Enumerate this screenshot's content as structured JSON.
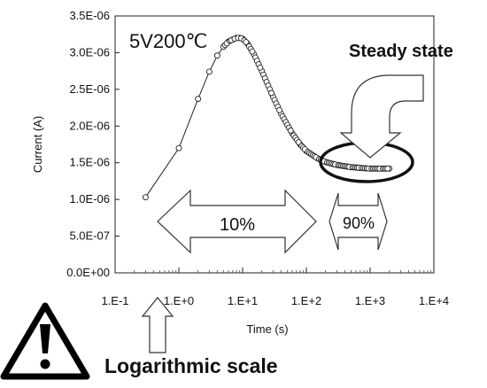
{
  "chart_data": {
    "type": "line",
    "title": "",
    "xlabel": "Time (s)",
    "ylabel": "Current (A)",
    "x_scale": "log",
    "xlim": [
      0.1,
      10000
    ],
    "ylim": [
      0,
      3.5e-06
    ],
    "x_tick_labels": [
      "1.E-1",
      "1.E+0",
      "1.E+1",
      "1.E+2",
      "1.E+3",
      "1.E+4"
    ],
    "x_tick_values": [
      0.1,
      1,
      10,
      100,
      1000,
      10000
    ],
    "y_tick_labels": [
      "0.0E+00",
      "5.0E-07",
      "1.0E-06",
      "1.5E-06",
      "2.0E-06",
      "2.5E-06",
      "3.0E-06",
      "3.5E-06"
    ],
    "y_tick_values": [
      0,
      5e-07,
      1e-06,
      1.5e-06,
      2e-06,
      2.5e-06,
      3e-06,
      3.5e-06
    ],
    "grid": false,
    "series": [
      {
        "marker": "open-circle",
        "x": [
          0.3,
          1,
          2,
          3,
          4,
          5,
          6,
          7,
          8,
          9,
          10,
          12,
          15,
          20,
          30,
          40,
          60,
          80,
          100,
          150,
          200,
          300,
          500,
          700,
          1000,
          1500,
          2000
        ],
        "y": [
          1.03e-06,
          1.7e-06,
          2.37e-06,
          2.74e-06,
          2.96e-06,
          3.08e-06,
          3.15e-06,
          3.18e-06,
          3.2e-06,
          3.2e-06,
          3.19e-06,
          3.12e-06,
          2.98e-06,
          2.75e-06,
          2.4e-06,
          2.17e-06,
          1.9e-06,
          1.75e-06,
          1.66e-06,
          1.56e-06,
          1.51e-06,
          1.47e-06,
          1.44e-06,
          1.43e-06,
          1.42e-06,
          1.42e-06,
          1.42e-06
        ]
      }
    ],
    "annotations": {
      "condition_label": "5V200℃",
      "steady_state_label": "Steady state",
      "transient_percent": "10%",
      "steady_percent": "90%",
      "log_scale_label": "Logarithmic scale"
    }
  }
}
